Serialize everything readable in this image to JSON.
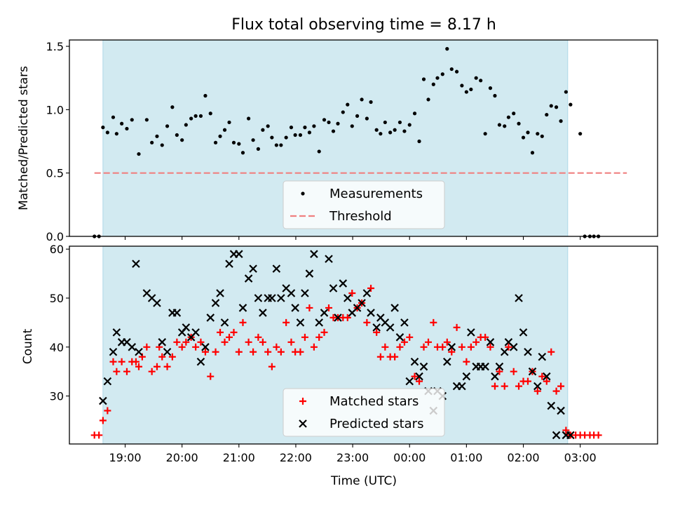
{
  "title": "Flux total observing time = 8.17 h",
  "colors": {
    "observing_window": "#add8e6",
    "measurements": "#000000",
    "threshold": "#f08080",
    "matched": "#ff0000",
    "predicted": "#000000"
  },
  "chart_data": [
    {
      "type": "scatter",
      "ylabel": "Matched/Predicted stars",
      "ylim": [
        0,
        1.55
      ],
      "yticks": [
        0.0,
        0.5,
        1.0,
        1.5
      ],
      "ytick_labels": [
        "0.0",
        "0.5",
        "1.0",
        "1.5"
      ],
      "x_unit": "hours since 19:00 UTC",
      "xlim": [
        -0.98,
        9.36
      ],
      "observing_window": [
        -0.39,
        7.78
      ],
      "threshold": {
        "y": 0.5,
        "x_range": [
          -0.54,
          8.82
        ]
      },
      "legend": {
        "placement": "lower center",
        "entries": [
          "Measurements",
          "Threshold"
        ]
      },
      "series": [
        {
          "name": "Measurements",
          "marker": "dot",
          "x": [
            -0.54,
            -0.46,
            -0.39,
            -0.31,
            -0.21,
            -0.15,
            -0.06,
            0.03,
            0.12,
            0.24,
            0.38,
            0.47,
            0.56,
            0.65,
            0.74,
            0.83,
            0.91,
            1.0,
            1.07,
            1.16,
            1.24,
            1.33,
            1.41,
            1.5,
            1.59,
            1.67,
            1.75,
            1.83,
            1.91,
            2.0,
            2.07,
            2.17,
            2.25,
            2.34,
            2.42,
            2.51,
            2.58,
            2.66,
            2.74,
            2.83,
            2.92,
            2.99,
            3.08,
            3.16,
            3.24,
            3.32,
            3.41,
            3.5,
            3.58,
            3.66,
            3.74,
            3.83,
            3.91,
            3.99,
            4.08,
            4.16,
            4.25,
            4.32,
            4.42,
            4.49,
            4.57,
            4.66,
            4.74,
            4.83,
            4.91,
            5.0,
            5.09,
            5.17,
            5.25,
            5.33,
            5.42,
            5.49,
            5.58,
            5.66,
            5.74,
            5.83,
            5.92,
            6.0,
            6.08,
            6.17,
            6.25,
            6.33,
            6.42,
            6.5,
            6.58,
            6.67,
            6.74,
            6.83,
            6.92,
            7.0,
            7.08,
            7.16,
            7.25,
            7.33,
            7.41,
            7.49,
            7.58,
            7.66,
            7.75,
            7.83,
            8.0,
            8.08,
            8.17,
            8.24,
            8.32
          ],
          "y": [
            0.0,
            0.0,
            0.86,
            0.82,
            0.94,
            0.81,
            0.89,
            0.85,
            0.92,
            0.65,
            0.92,
            0.74,
            0.79,
            0.72,
            0.87,
            1.02,
            0.8,
            0.76,
            0.88,
            0.93,
            0.95,
            0.95,
            1.11,
            0.97,
            0.74,
            0.79,
            0.84,
            0.9,
            0.74,
            0.73,
            0.66,
            0.93,
            0.76,
            0.69,
            0.84,
            0.87,
            0.78,
            0.72,
            0.72,
            0.78,
            0.86,
            0.8,
            0.8,
            0.86,
            0.82,
            0.87,
            0.67,
            0.92,
            0.9,
            0.83,
            0.89,
            0.98,
            1.04,
            0.87,
            0.95,
            1.08,
            0.93,
            1.06,
            0.84,
            0.81,
            0.9,
            0.82,
            0.84,
            0.9,
            0.83,
            0.88,
            0.97,
            0.75,
            1.24,
            1.08,
            1.2,
            1.25,
            1.28,
            1.48,
            1.32,
            1.3,
            1.19,
            1.14,
            1.16,
            1.25,
            1.23,
            0.81,
            1.17,
            1.11,
            0.88,
            0.87,
            0.94,
            0.97,
            0.89,
            0.78,
            0.82,
            0.66,
            0.81,
            0.79,
            0.96,
            1.03,
            1.02,
            0.91,
            1.14,
            1.04,
            0.81,
            0.0,
            0.0,
            0.0,
            0.0
          ]
        }
      ]
    },
    {
      "type": "scatter",
      "xlabel": "Time (UTC)",
      "ylabel": "Count",
      "ylim": [
        20.2,
        60.6
      ],
      "yticks": [
        30,
        40,
        50,
        60
      ],
      "ytick_labels": [
        "30",
        "40",
        "50",
        "60"
      ],
      "x_unit": "hours since 19:00 UTC",
      "xlim": [
        -0.98,
        9.36
      ],
      "xticks": [
        0,
        1,
        2,
        3,
        4,
        5,
        6,
        7,
        8
      ],
      "xtick_labels": [
        "19:00",
        "20:00",
        "21:00",
        "22:00",
        "23:00",
        "00:00",
        "01:00",
        "02:00",
        "03:00"
      ],
      "observing_window": [
        -0.39,
        7.78
      ],
      "legend": {
        "placement": "lower center",
        "entries": [
          "Matched stars",
          "Predicted stars"
        ]
      },
      "series": [
        {
          "name": "Matched stars",
          "marker": "plus",
          "x": [
            -0.54,
            -0.46,
            -0.39,
            -0.31,
            -0.21,
            -0.15,
            -0.06,
            0.03,
            0.12,
            0.19,
            0.24,
            0.3,
            0.38,
            0.47,
            0.56,
            0.6,
            0.65,
            0.74,
            0.83,
            0.91,
            1.0,
            1.07,
            1.16,
            1.24,
            1.33,
            1.41,
            1.5,
            1.59,
            1.67,
            1.75,
            1.83,
            1.91,
            2.0,
            2.07,
            2.17,
            2.25,
            2.34,
            2.42,
            2.51,
            2.58,
            2.66,
            2.74,
            2.83,
            2.92,
            2.99,
            3.08,
            3.16,
            3.24,
            3.32,
            3.41,
            3.5,
            3.58,
            3.66,
            3.74,
            3.83,
            3.91,
            3.99,
            4.08,
            4.16,
            4.25,
            4.32,
            4.42,
            4.49,
            4.57,
            4.66,
            4.74,
            4.83,
            4.91,
            5.0,
            5.09,
            5.17,
            5.25,
            5.33,
            5.42,
            5.49,
            5.58,
            5.66,
            5.74,
            5.83,
            5.92,
            6.0,
            6.08,
            6.17,
            6.25,
            6.33,
            6.42,
            6.5,
            6.58,
            6.67,
            6.74,
            6.83,
            6.92,
            7.0,
            7.08,
            7.16,
            7.25,
            7.33,
            7.41,
            7.49,
            7.58,
            7.66,
            7.75,
            7.83,
            7.92,
            8.0,
            8.08,
            8.17,
            8.24,
            8.32
          ],
          "y": [
            22,
            22,
            25,
            27,
            37,
            35,
            37,
            35,
            37,
            37,
            36,
            38,
            40,
            35,
            36,
            40,
            38,
            36,
            38,
            41,
            40,
            41,
            42,
            40,
            41,
            39,
            34,
            39,
            43,
            41,
            42,
            43,
            39,
            45,
            41,
            39,
            42,
            41,
            39,
            36,
            40,
            39,
            45,
            41,
            39,
            39,
            42,
            48,
            40,
            42,
            43,
            48,
            46,
            46,
            46,
            46,
            51,
            48,
            49,
            45,
            52,
            43,
            38,
            40,
            38,
            38,
            40,
            41,
            42,
            34,
            33,
            40,
            41,
            45,
            40,
            40,
            41,
            39,
            44,
            40,
            37,
            40,
            41,
            42,
            42,
            40,
            32,
            35,
            32,
            40,
            35,
            32,
            33,
            33,
            35,
            31,
            34,
            33,
            39,
            31,
            32,
            23,
            22,
            22,
            22,
            22,
            22,
            22,
            22
          ],
          "y_note": ""
        },
        {
          "name": "Predicted stars",
          "marker": "x",
          "x": [
            -0.39,
            -0.31,
            -0.21,
            -0.15,
            -0.06,
            0.03,
            0.12,
            0.19,
            0.24,
            0.38,
            0.47,
            0.56,
            0.65,
            0.74,
            0.83,
            0.91,
            1.0,
            1.07,
            1.16,
            1.24,
            1.33,
            1.41,
            1.5,
            1.59,
            1.67,
            1.75,
            1.83,
            1.91,
            2.0,
            2.07,
            2.17,
            2.25,
            2.34,
            2.42,
            2.51,
            2.58,
            2.66,
            2.74,
            2.83,
            2.92,
            2.99,
            3.08,
            3.16,
            3.24,
            3.32,
            3.41,
            3.5,
            3.58,
            3.66,
            3.74,
            3.83,
            3.91,
            3.99,
            4.08,
            4.16,
            4.25,
            4.32,
            4.42,
            4.49,
            4.57,
            4.66,
            4.74,
            4.83,
            4.91,
            5.0,
            5.09,
            5.17,
            5.25,
            5.33,
            5.42,
            5.49,
            5.58,
            5.66,
            5.74,
            5.83,
            5.92,
            6.0,
            6.08,
            6.17,
            6.25,
            6.33,
            6.42,
            6.5,
            6.58,
            6.67,
            6.74,
            6.83,
            6.92,
            7.0,
            7.08,
            7.16,
            7.25,
            7.33,
            7.41,
            7.49,
            7.58,
            7.66,
            7.75,
            7.83
          ],
          "y": [
            29,
            33,
            39,
            43,
            41,
            41,
            40,
            57,
            39,
            51,
            50,
            49,
            41,
            39,
            47,
            47,
            43,
            44,
            42,
            43,
            37,
            40,
            46,
            49,
            51,
            45,
            57,
            59,
            59,
            48,
            54,
            56,
            50,
            47,
            50,
            50,
            56,
            50,
            52,
            51,
            48,
            45,
            51,
            55,
            59,
            45,
            47,
            58,
            52,
            46,
            53,
            50,
            47,
            48,
            49,
            51,
            47,
            44,
            46,
            45,
            44,
            48,
            42,
            45,
            33,
            37,
            34,
            36,
            31,
            27,
            31,
            30,
            37,
            40,
            32,
            32,
            34,
            43,
            36,
            36,
            36,
            41,
            34,
            36,
            39,
            41,
            40,
            50,
            43,
            39,
            35,
            32,
            38,
            34,
            28,
            22,
            27,
            22,
            22
          ]
        }
      ]
    }
  ]
}
